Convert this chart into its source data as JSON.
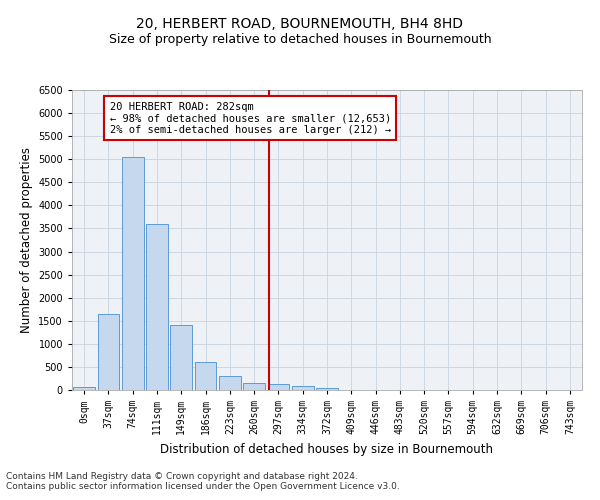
{
  "title": "20, HERBERT ROAD, BOURNEMOUTH, BH4 8HD",
  "subtitle": "Size of property relative to detached houses in Bournemouth",
  "xlabel": "Distribution of detached houses by size in Bournemouth",
  "ylabel": "Number of detached properties",
  "bar_labels": [
    "0sqm",
    "37sqm",
    "74sqm",
    "111sqm",
    "149sqm",
    "186sqm",
    "223sqm",
    "260sqm",
    "297sqm",
    "334sqm",
    "372sqm",
    "409sqm",
    "446sqm",
    "483sqm",
    "520sqm",
    "557sqm",
    "594sqm",
    "632sqm",
    "669sqm",
    "706sqm",
    "743sqm"
  ],
  "bar_values": [
    75,
    1650,
    5050,
    3600,
    1400,
    610,
    300,
    150,
    120,
    80,
    40,
    10,
    0,
    0,
    0,
    0,
    0,
    0,
    0,
    0,
    0
  ],
  "bar_color": "#c5d8ed",
  "bar_edgecolor": "#5b9bd5",
  "ylim": [
    0,
    6500
  ],
  "yticks": [
    0,
    500,
    1000,
    1500,
    2000,
    2500,
    3000,
    3500,
    4000,
    4500,
    5000,
    5500,
    6000,
    6500
  ],
  "vline_color": "#cc0000",
  "annotation_title": "20 HERBERT ROAD: 282sqm",
  "annotation_line1": "← 98% of detached houses are smaller (12,653)",
  "annotation_line2": "2% of semi-detached houses are larger (212) →",
  "annotation_box_color": "#cc0000",
  "footer_line1": "Contains HM Land Registry data © Crown copyright and database right 2024.",
  "footer_line2": "Contains public sector information licensed under the Open Government Licence v3.0.",
  "background_color": "#eef2f7",
  "grid_color": "#c8d4e0",
  "title_fontsize": 10,
  "subtitle_fontsize": 9,
  "axis_label_fontsize": 8.5,
  "tick_fontsize": 7,
  "footer_fontsize": 6.5,
  "annotation_fontsize": 7.5
}
